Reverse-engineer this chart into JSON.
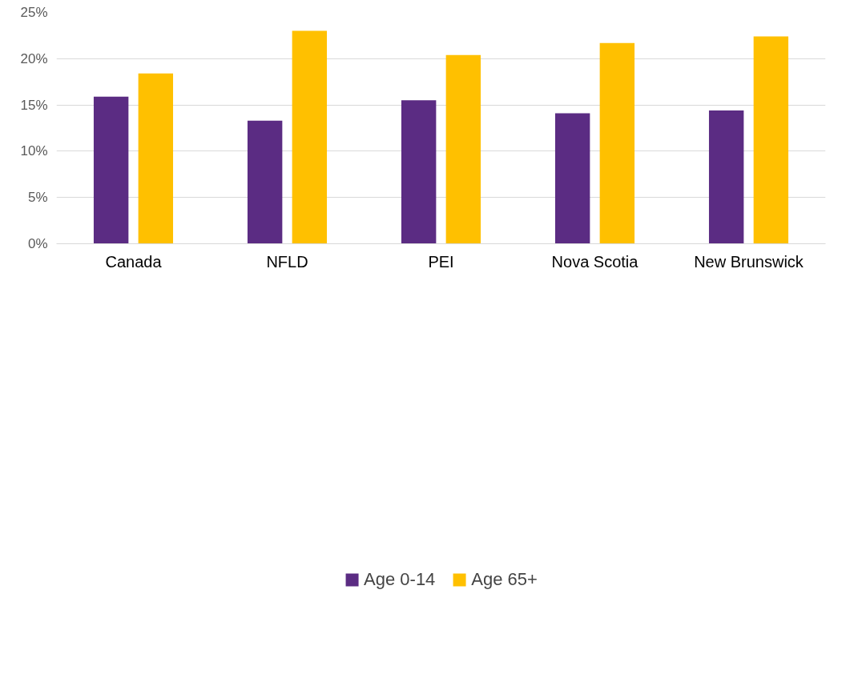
{
  "chart_data": {
    "type": "bar",
    "categories": [
      "Canada",
      "NFLD",
      "PEI",
      "Nova Scotia",
      "New Brunswick"
    ],
    "series": [
      {
        "name": "Age 0-14",
        "color": "#5b2c83",
        "values": [
          15.9,
          13.3,
          15.5,
          14.1,
          14.4
        ]
      },
      {
        "name": "Age 65+",
        "color": "#ffc000",
        "values": [
          18.4,
          23.0,
          20.4,
          21.7,
          22.4
        ]
      }
    ],
    "ylim": [
      0,
      25
    ],
    "yticks": [
      {
        "value": 0,
        "label": "0%"
      },
      {
        "value": 5,
        "label": "5%"
      },
      {
        "value": 10,
        "label": "10%"
      },
      {
        "value": 15,
        "label": "15%"
      },
      {
        "value": 20,
        "label": "20%"
      },
      {
        "value": 25,
        "label": "25%"
      }
    ],
    "grid": "y",
    "legend": "bottom"
  }
}
